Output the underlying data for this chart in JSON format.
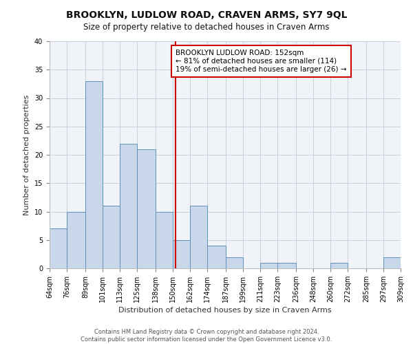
{
  "title": "BROOKLYN, LUDLOW ROAD, CRAVEN ARMS, SY7 9QL",
  "subtitle": "Size of property relative to detached houses in Craven Arms",
  "xlabel": "Distribution of detached houses by size in Craven Arms",
  "ylabel": "Number of detached properties",
  "bin_edges": [
    64,
    76,
    89,
    101,
    113,
    125,
    138,
    150,
    162,
    174,
    187,
    199,
    211,
    223,
    236,
    248,
    260,
    272,
    285,
    297,
    309
  ],
  "counts": [
    7,
    10,
    33,
    11,
    22,
    21,
    10,
    5,
    11,
    4,
    2,
    0,
    1,
    1,
    0,
    0,
    1,
    0,
    0,
    2
  ],
  "bar_facecolor": "#c8d8ea",
  "bar_edgecolor": "#6090b8",
  "vline_x": 152,
  "vline_color": "#cc0000",
  "annotation_title": "BROOKLYN LUDLOW ROAD: 152sqm",
  "annotation_line1": "← 81% of detached houses are smaller (114)",
  "annotation_line2": "19% of semi-detached houses are larger (26) →",
  "annotation_box_edgecolor": "#cc0000",
  "annotation_box_facecolor": "#ffffff",
  "ylim": [
    0,
    40
  ],
  "yticks": [
    0,
    5,
    10,
    15,
    20,
    25,
    30,
    35,
    40
  ],
  "tick_labels": [
    "64sqm",
    "76sqm",
    "89sqm",
    "101sqm",
    "113sqm",
    "125sqm",
    "138sqm",
    "150sqm",
    "162sqm",
    "174sqm",
    "187sqm",
    "199sqm",
    "211sqm",
    "223sqm",
    "236sqm",
    "248sqm",
    "260sqm",
    "272sqm",
    "285sqm",
    "297sqm",
    "309sqm"
  ],
  "footer_line1": "Contains HM Land Registry data © Crown copyright and database right 2024.",
  "footer_line2": "Contains public sector information licensed under the Open Government Licence v3.0.",
  "bg_color": "#ffffff",
  "plot_bg_color": "#f0f4f9",
  "grid_color": "#c8d0dc",
  "title_fontsize": 10,
  "subtitle_fontsize": 8.5,
  "ylabel_fontsize": 8,
  "xlabel_fontsize": 8,
  "tick_fontsize": 7,
  "footer_fontsize": 6
}
